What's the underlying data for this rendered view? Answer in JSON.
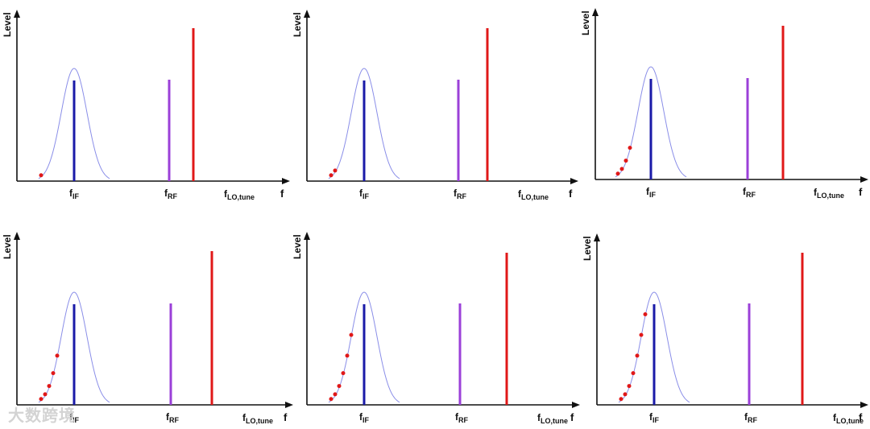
{
  "watermark": "大数跨境",
  "labels": {
    "ylabel": "Level",
    "xlabel": "f",
    "f_if": {
      "main": "f",
      "sub": "IF"
    },
    "f_rf": {
      "main": "f",
      "sub": "RF"
    },
    "f_lo": {
      "main": "f",
      "sub": "LO,tune"
    }
  },
  "colors": {
    "if_line": "#1a1aa8",
    "rf_line": "#9b40d8",
    "lo_line": "#e01818",
    "filter_curve": "#8a8ee8",
    "dots": "#e01818",
    "axes": "#111111"
  },
  "panels": [
    {
      "dots": 1
    },
    {
      "dots": 2
    },
    {
      "dots": 4
    },
    {
      "dots": 5
    },
    {
      "dots": 6
    },
    {
      "dots": 7
    }
  ]
}
